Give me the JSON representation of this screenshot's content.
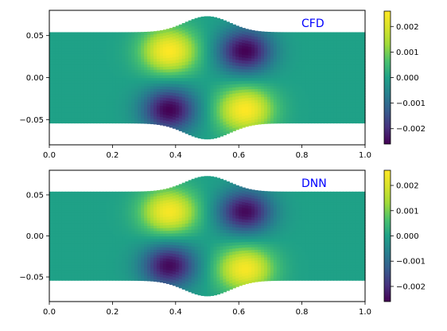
{
  "chart_data": [
    {
      "type": "heatmap",
      "annotation": "CFD",
      "xlim": [
        0.0,
        1.0
      ],
      "ylim": [
        -0.08,
        0.08
      ],
      "x_ticks": [
        "0.0",
        "0.2",
        "0.4",
        "0.6",
        "0.8",
        "1.0"
      ],
      "y_ticks": [
        "0.05",
        "0.00",
        "−0.05"
      ],
      "channel_half_width": 0.054,
      "bulge": {
        "center_x": 0.5,
        "peak_half_width": 0.073,
        "sigma": 0.1
      },
      "field_extrema": [
        {
          "x": 0.38,
          "y": 0.032,
          "value": 0.0026
        },
        {
          "x": 0.62,
          "y": 0.032,
          "value": -0.0026
        },
        {
          "x": 0.38,
          "y": -0.038,
          "value": -0.0026
        },
        {
          "x": 0.62,
          "y": -0.038,
          "value": 0.0026
        }
      ],
      "colorbar": {
        "min": -0.0026,
        "max": 0.0026,
        "ticks": [
          "0.002",
          "0.001",
          "0.000",
          "−0.001",
          "−0.002"
        ],
        "colormap": "viridis"
      }
    },
    {
      "type": "heatmap",
      "annotation": "DNN",
      "xlim": [
        0.0,
        1.0
      ],
      "ylim": [
        -0.08,
        0.08
      ],
      "x_ticks": [
        "0.0",
        "0.2",
        "0.4",
        "0.6",
        "0.8",
        "1.0"
      ],
      "y_ticks": [
        "0.05",
        "0.00",
        "−0.05"
      ],
      "channel_half_width": 0.054,
      "bulge": {
        "center_x": 0.5,
        "peak_half_width": 0.073,
        "sigma": 0.1
      },
      "field_extrema": [
        {
          "x": 0.38,
          "y": 0.03,
          "value": 0.0025
        },
        {
          "x": 0.62,
          "y": 0.03,
          "value": -0.0025
        },
        {
          "x": 0.38,
          "y": -0.036,
          "value": -0.0025
        },
        {
          "x": 0.62,
          "y": -0.04,
          "value": 0.0025
        }
      ],
      "colorbar": {
        "min": -0.0026,
        "max": 0.0026,
        "ticks": [
          "0.002",
          "0.001",
          "0.000",
          "−0.001",
          "−0.002"
        ],
        "colormap": "viridis"
      }
    }
  ]
}
